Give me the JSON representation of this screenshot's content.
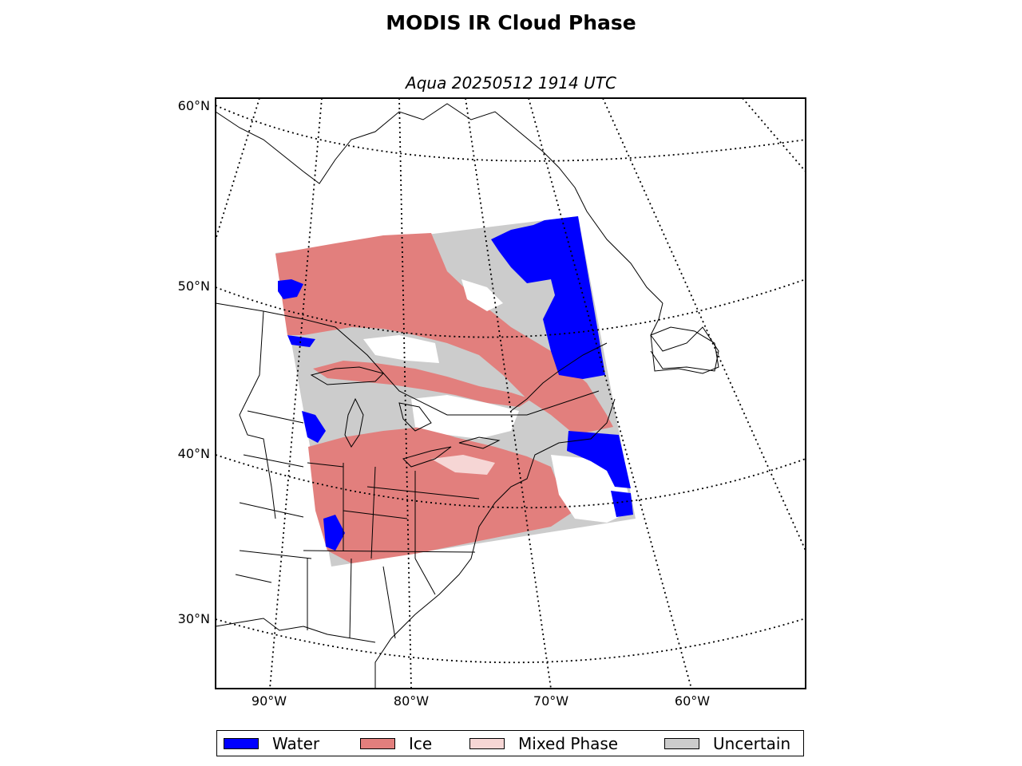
{
  "title": "MODIS IR Cloud Phase",
  "subtitle": "Aqua 20250512 1914 UTC",
  "map": {
    "lat_labels": [
      "60°N",
      "50°N",
      "40°N",
      "30°N"
    ],
    "lon_labels": [
      "90°W",
      "80°W",
      "70°W",
      "60°W"
    ]
  },
  "legend": [
    {
      "label": "Water",
      "color": "#0000ff"
    },
    {
      "label": "Ice",
      "color": "#e27f7d"
    },
    {
      "label": "Mixed Phase",
      "color": "#f6d6d5"
    },
    {
      "label": "Uncertain",
      "color": "#cccccc"
    }
  ]
}
